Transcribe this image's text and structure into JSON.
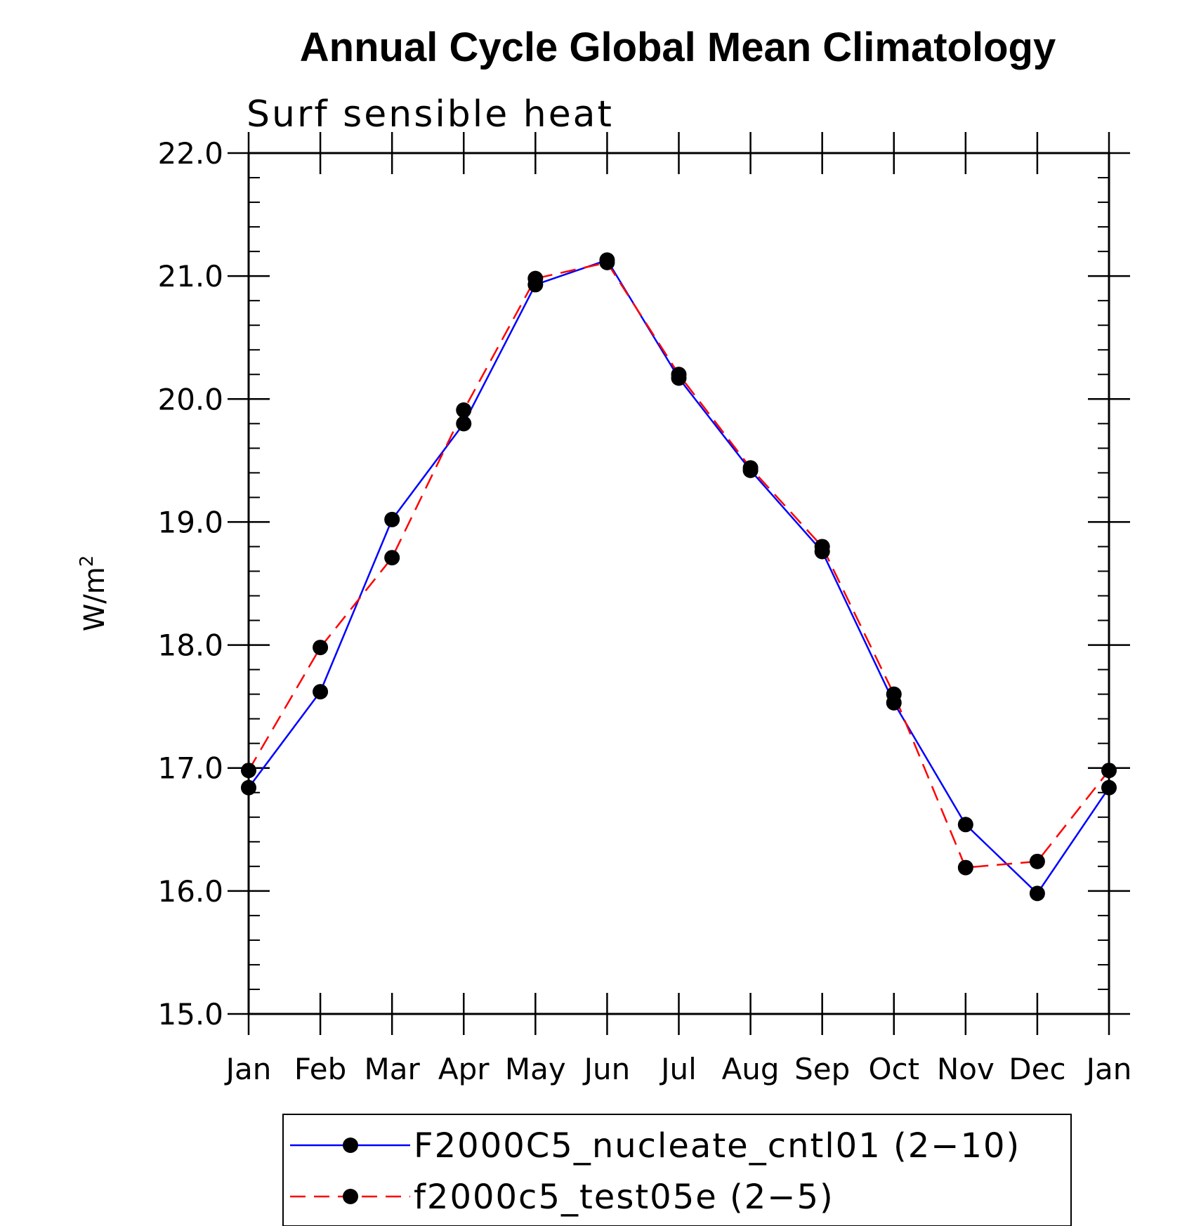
{
  "chart_data": {
    "type": "line",
    "title": "Annual Cycle Global Mean Climatology",
    "subtitle": "Surf sensible heat",
    "ylabel": "W/m",
    "ylabel_sup": "2",
    "xlabel": "",
    "ylim": [
      15.0,
      22.0
    ],
    "yticks": [
      "15.0",
      "16.0",
      "17.0",
      "18.0",
      "19.0",
      "20.0",
      "21.0",
      "22.0"
    ],
    "yticks_values": [
      15,
      16,
      17,
      18,
      19,
      20,
      21,
      22
    ],
    "categories": [
      "Jan",
      "Feb",
      "Mar",
      "Apr",
      "May",
      "Jun",
      "Jul",
      "Aug",
      "Sep",
      "Oct",
      "Nov",
      "Dec",
      "Jan"
    ],
    "series": [
      {
        "name": "F2000C5_nucleate_cntl01 (2−10)",
        "color": "#0000ff",
        "style": "solid",
        "values": [
          16.84,
          17.62,
          19.02,
          19.8,
          20.93,
          21.13,
          20.17,
          19.42,
          18.76,
          17.53,
          16.54,
          15.98,
          16.84
        ]
      },
      {
        "name": "f2000c5_test05e (2−5)",
        "color": "#ff0000",
        "style": "dashed",
        "values": [
          16.98,
          17.98,
          18.71,
          19.91,
          20.98,
          21.11,
          20.2,
          19.44,
          18.8,
          17.6,
          16.19,
          16.24,
          16.98
        ]
      }
    ]
  }
}
